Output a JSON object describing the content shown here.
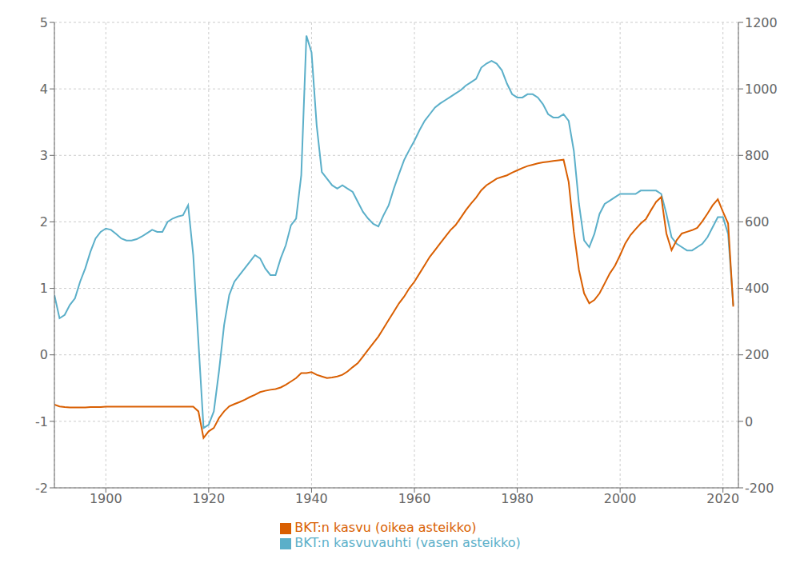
{
  "chart_data": {
    "type": "line",
    "x": [
      1890,
      1891,
      1892,
      1893,
      1894,
      1895,
      1896,
      1897,
      1898,
      1899,
      1900,
      1901,
      1902,
      1903,
      1904,
      1905,
      1906,
      1907,
      1908,
      1909,
      1910,
      1911,
      1912,
      1913,
      1914,
      1915,
      1916,
      1917,
      1918,
      1919,
      1920,
      1921,
      1922,
      1923,
      1924,
      1925,
      1926,
      1927,
      1928,
      1929,
      1930,
      1931,
      1932,
      1933,
      1934,
      1935,
      1936,
      1937,
      1938,
      1939,
      1940,
      1941,
      1942,
      1943,
      1944,
      1945,
      1946,
      1947,
      1948,
      1949,
      1950,
      1951,
      1952,
      1953,
      1954,
      1955,
      1956,
      1957,
      1958,
      1959,
      1960,
      1961,
      1962,
      1963,
      1964,
      1965,
      1966,
      1967,
      1968,
      1969,
      1970,
      1971,
      1972,
      1973,
      1974,
      1975,
      1976,
      1977,
      1978,
      1979,
      1980,
      1981,
      1982,
      1983,
      1984,
      1985,
      1986,
      1987,
      1988,
      1989,
      1990,
      1991,
      1992,
      1993,
      1994,
      1995,
      1996,
      1997,
      1998,
      1999,
      2000,
      2001,
      2002,
      2003,
      2004,
      2005,
      2006,
      2007,
      2008,
      2009,
      2010,
      2011,
      2012,
      2013,
      2014,
      2015,
      2016,
      2017,
      2018,
      2019,
      2020,
      2021,
      2022
    ],
    "xlim": [
      1890,
      2023
    ],
    "xticks": [
      1900,
      1920,
      1940,
      1960,
      1980,
      2000,
      2020
    ],
    "ylim": [
      -2,
      5
    ],
    "yticks": [
      -2,
      -1,
      0,
      1,
      2,
      3,
      4,
      5
    ],
    "y2lim": [
      -200,
      1200
    ],
    "y2ticks": [
      -200,
      0,
      200,
      400,
      600,
      800,
      1000,
      1200
    ],
    "grid": true,
    "legend": "bottom",
    "series": [
      {
        "name": "BKT:n kasvuvauhti (vasen asteikko)",
        "color": "#5BAFC9",
        "values": [
          0.9,
          0.55,
          0.6,
          0.75,
          0.85,
          1.1,
          1.3,
          1.55,
          1.75,
          1.85,
          1.9,
          1.88,
          1.82,
          1.75,
          1.72,
          1.72,
          1.74,
          1.78,
          1.83,
          1.88,
          1.85,
          1.85,
          2.0,
          2.05,
          2.08,
          2.1,
          2.25,
          1.5,
          0.2,
          -1.1,
          -1.05,
          -0.85,
          -0.25,
          0.45,
          0.9,
          1.1,
          1.2,
          1.3,
          1.4,
          1.5,
          1.45,
          1.3,
          1.2,
          1.2,
          1.45,
          1.65,
          1.95,
          2.05,
          2.7,
          4.8,
          4.55,
          3.45,
          2.75,
          2.65,
          2.55,
          2.5,
          2.55,
          2.5,
          2.45,
          2.3,
          2.15,
          2.05,
          1.97,
          1.93,
          2.1,
          2.25,
          2.5,
          2.72,
          2.93,
          3.08,
          3.22,
          3.38,
          3.52,
          3.62,
          3.72,
          3.78,
          3.83,
          3.88,
          3.93,
          3.98,
          4.05,
          4.1,
          4.15,
          4.32,
          4.38,
          4.42,
          4.38,
          4.28,
          4.08,
          3.92,
          3.87,
          3.87,
          3.92,
          3.92,
          3.87,
          3.77,
          3.62,
          3.57,
          3.57,
          3.62,
          3.52,
          3.07,
          2.27,
          1.72,
          1.62,
          1.82,
          2.12,
          2.27,
          2.32,
          2.37,
          2.42,
          2.42,
          2.42,
          2.42,
          2.47,
          2.47,
          2.47,
          2.47,
          2.42,
          2.12,
          1.77,
          1.67,
          1.62,
          1.57,
          1.57,
          1.62,
          1.67,
          1.77,
          1.92,
          2.07,
          2.07,
          1.82,
          0.75
        ]
      },
      {
        "name": "BKT:n kasvu (oikea asteikko)",
        "color": "#D95F02",
        "axis": "y2",
        "values": [
          50,
          45,
          43,
          42,
          42,
          42,
          42,
          43,
          43,
          43,
          44,
          44,
          44,
          44,
          44,
          44,
          44,
          44,
          44,
          44,
          44,
          44,
          44,
          44,
          44,
          44,
          44,
          44,
          30,
          -50,
          -30,
          -20,
          10,
          30,
          45,
          52,
          58,
          65,
          73,
          80,
          88,
          92,
          95,
          97,
          102,
          110,
          120,
          130,
          145,
          145,
          148,
          140,
          135,
          130,
          132,
          135,
          140,
          150,
          163,
          175,
          195,
          215,
          235,
          255,
          280,
          305,
          330,
          355,
          375,
          400,
          420,
          445,
          470,
          495,
          515,
          535,
          555,
          575,
          590,
          612,
          635,
          655,
          673,
          695,
          710,
          720,
          730,
          735,
          740,
          748,
          755,
          762,
          768,
          772,
          776,
          779,
          781,
          783,
          785,
          787,
          720,
          570,
          455,
          385,
          355,
          365,
          385,
          415,
          445,
          468,
          500,
          535,
          560,
          578,
          595,
          608,
          635,
          660,
          675,
          565,
          515,
          545,
          565,
          570,
          575,
          582,
          602,
          625,
          650,
          668,
          630,
          595,
          345
        ]
      }
    ]
  }
}
